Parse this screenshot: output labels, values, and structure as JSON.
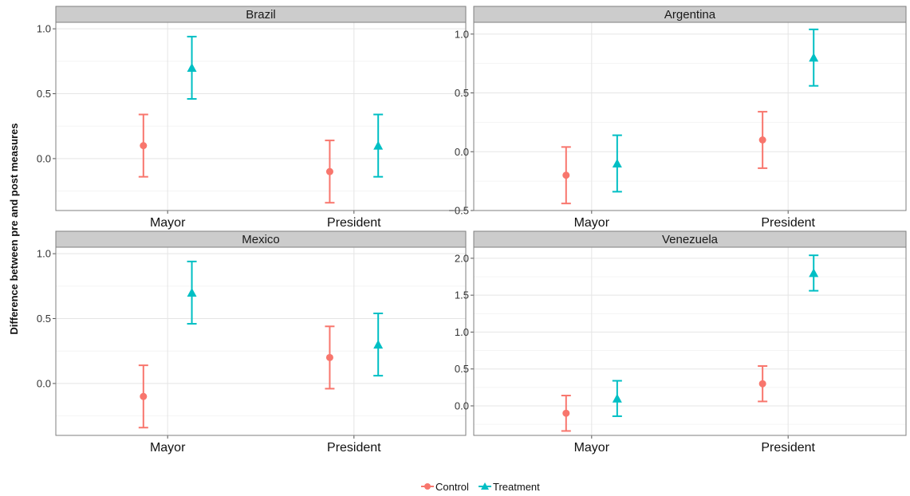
{
  "chart_data": {
    "type": "errorbar",
    "ylabel": "Difference between pre and post measures",
    "xlabel": "",
    "categories": [
      "Mayor",
      "President"
    ],
    "groups": [
      "Control",
      "Treatment"
    ],
    "colors": {
      "Control": "#F8766D",
      "Treatment": "#00BFC4"
    },
    "legend": {
      "position": "bottom",
      "entries": [
        "Control",
        "Treatment"
      ]
    },
    "grid": true,
    "panels": [
      {
        "title": "Brazil",
        "ylim": [
          -0.4,
          1.05
        ],
        "yticks": [
          0.0,
          0.5,
          1.0
        ],
        "ytick_labels": [
          "0.0",
          "0.5",
          "1.0"
        ],
        "series": [
          {
            "name": "Control",
            "points": [
              {
                "x": "Mayor",
                "y": 0.1,
                "low": -0.14,
                "high": 0.34
              },
              {
                "x": "President",
                "y": -0.1,
                "low": -0.34,
                "high": 0.14
              }
            ]
          },
          {
            "name": "Treatment",
            "points": [
              {
                "x": "Mayor",
                "y": 0.7,
                "low": 0.46,
                "high": 0.94
              },
              {
                "x": "President",
                "y": 0.1,
                "low": -0.14,
                "high": 0.34
              }
            ]
          }
        ]
      },
      {
        "title": "Argentina",
        "ylim": [
          -0.5,
          1.1
        ],
        "yticks": [
          -0.5,
          0.0,
          0.5,
          1.0
        ],
        "ytick_labels": [
          "−0.5",
          "0.0",
          "0.5",
          "1.0"
        ],
        "series": [
          {
            "name": "Control",
            "points": [
              {
                "x": "Mayor",
                "y": -0.2,
                "low": -0.44,
                "high": 0.04
              },
              {
                "x": "President",
                "y": 0.1,
                "low": -0.14,
                "high": 0.34
              }
            ]
          },
          {
            "name": "Treatment",
            "points": [
              {
                "x": "Mayor",
                "y": -0.1,
                "low": -0.34,
                "high": 0.14
              },
              {
                "x": "President",
                "y": 0.8,
                "low": 0.56,
                "high": 1.04
              }
            ]
          }
        ]
      },
      {
        "title": "Mexico",
        "ylim": [
          -0.4,
          1.05
        ],
        "yticks": [
          0.0,
          0.5,
          1.0
        ],
        "ytick_labels": [
          "0.0",
          "0.5",
          "1.0"
        ],
        "series": [
          {
            "name": "Control",
            "points": [
              {
                "x": "Mayor",
                "y": -0.1,
                "low": -0.34,
                "high": 0.14
              },
              {
                "x": "President",
                "y": 0.2,
                "low": -0.04,
                "high": 0.44
              }
            ]
          },
          {
            "name": "Treatment",
            "points": [
              {
                "x": "Mayor",
                "y": 0.7,
                "low": 0.46,
                "high": 0.94
              },
              {
                "x": "President",
                "y": 0.3,
                "low": 0.06,
                "high": 0.54
              }
            ]
          }
        ]
      },
      {
        "title": "Venezuela",
        "ylim": [
          -0.4,
          2.15
        ],
        "yticks": [
          0.0,
          0.5,
          1.0,
          1.5,
          2.0
        ],
        "ytick_labels": [
          "0.0",
          "0.5",
          "1.0",
          "1.5",
          "2.0"
        ],
        "series": [
          {
            "name": "Control",
            "points": [
              {
                "x": "Mayor",
                "y": -0.1,
                "low": -0.34,
                "high": 0.14
              },
              {
                "x": "President",
                "y": 0.3,
                "low": 0.06,
                "high": 0.54
              }
            ]
          },
          {
            "name": "Treatment",
            "points": [
              {
                "x": "Mayor",
                "y": 0.1,
                "low": -0.14,
                "high": 0.34
              },
              {
                "x": "President",
                "y": 1.8,
                "low": 1.56,
                "high": 2.04
              }
            ]
          }
        ]
      }
    ]
  }
}
